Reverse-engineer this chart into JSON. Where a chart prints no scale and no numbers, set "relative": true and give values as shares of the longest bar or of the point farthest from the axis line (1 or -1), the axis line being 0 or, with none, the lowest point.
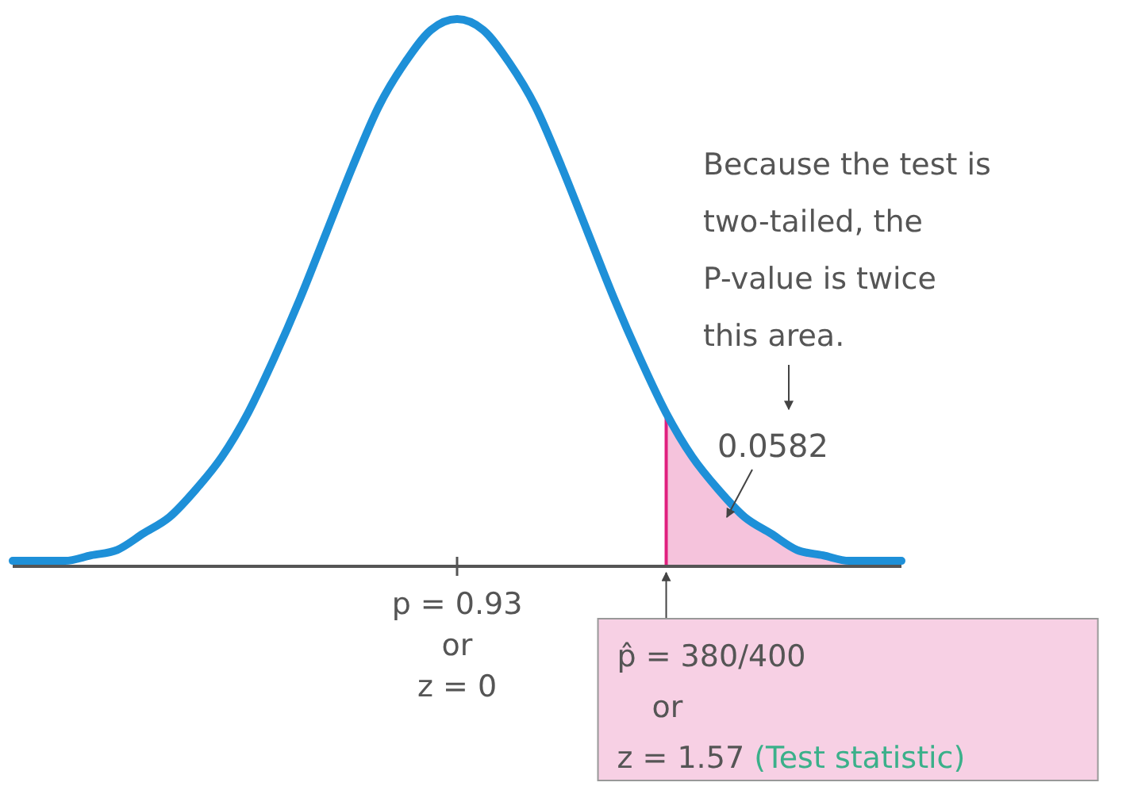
{
  "chart_data": {
    "type": "line",
    "relative": true,
    "categories": [
      null,
      null,
      null,
      null,
      null,
      null,
      null,
      null,
      null,
      null,
      null,
      null,
      null,
      null,
      null,
      null,
      null,
      null,
      null,
      null,
      null,
      null,
      null,
      null,
      null,
      null,
      null,
      null,
      null,
      null,
      null,
      null,
      null,
      null,
      null
    ],
    "series": [
      {
        "color": "#1e90d8",
        "values": [
          0.01,
          0.01,
          0.01,
          0.02,
          0.03,
          0.06,
          0.09,
          0.14,
          0.2,
          0.28,
          0.38,
          0.49,
          0.61,
          0.73,
          0.84,
          0.92,
          0.98,
          1,
          0.98,
          0.92,
          0.84,
          0.73,
          0.61,
          0.49,
          0.38,
          0.28,
          0.2,
          0.14,
          0.09,
          0.06,
          0.03,
          0.02,
          0.01,
          0.01,
          0.01
        ]
      },
      {
        "type": "area",
        "color": "#f5c3dc",
        "values": [
          null,
          null,
          null,
          null,
          null,
          null,
          null,
          null,
          null,
          null,
          null,
          null,
          null,
          null,
          null,
          null,
          null,
          null,
          null,
          null,
          null,
          null,
          null,
          null,
          null,
          0.28,
          0.2,
          0.14,
          0.09,
          0.06,
          0.03,
          0.02,
          0.01,
          0.01,
          0.01
        ]
      }
    ],
    "annotations": [
      "Because the test is\ntwo-tailed, the\nP-value is twice\nthis area.",
      "0.0582",
      "p = 0.93\nor\nz = 0",
      "p̂ = 380/400\nor\nz = 1.57 (Test statistic)"
    ]
  }
}
